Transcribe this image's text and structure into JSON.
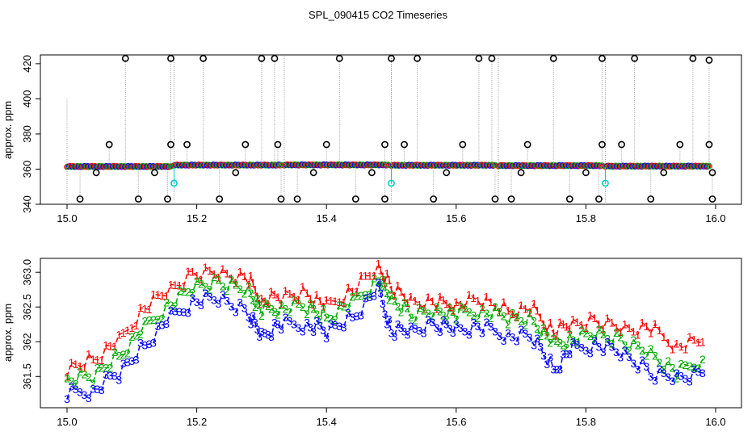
{
  "figure_title": "SPL_090415  CO2 Timeseries",
  "chart_data": [
    {
      "type": "scatter",
      "title": "SPL_090415  CO2 Timeseries",
      "xlabel": "",
      "ylabel": "approx. ppm",
      "xlim": [
        15.0,
        16.0
      ],
      "ylim": [
        340,
        425
      ],
      "x_ticks": [
        15.0,
        15.2,
        15.4,
        15.6,
        15.8,
        16.0
      ],
      "x_tick_labels": [
        "15.0",
        "15.2",
        "15.4",
        "15.6",
        "15.8",
        "16.0"
      ],
      "y_ticks": [
        340,
        360,
        380,
        400,
        420
      ],
      "y_tick_labels": [
        "340",
        "360",
        "380",
        "400",
        "420"
      ],
      "colors": {
        "series1": "#ff0000",
        "series2": "#00aa00",
        "series3": "#0000ff",
        "cal": "#00cccc",
        "drop": "#999999",
        "spike": "#000000"
      },
      "baseline_segments": [
        {
          "x_start": 15.0,
          "x_end": 15.16,
          "value": 361.5
        },
        {
          "x_start": 15.165,
          "x_end": 15.33,
          "value": 362.3
        },
        {
          "x_start": 15.335,
          "x_end": 15.495,
          "value": 362.4
        },
        {
          "x_start": 15.5,
          "x_end": 15.66,
          "value": 362.2
        },
        {
          "x_start": 15.665,
          "x_end": 15.825,
          "value": 362.0
        },
        {
          "x_start": 15.83,
          "x_end": 15.99,
          "value": 361.7
        }
      ],
      "calibration_points": [
        {
          "x": 15.165,
          "y": 352
        },
        {
          "x": 15.5,
          "y": 352
        },
        {
          "x": 15.83,
          "y": 352
        }
      ],
      "outliers_high": [
        {
          "x": 15.09,
          "y": 423
        },
        {
          "x": 15.16,
          "y": 423
        },
        {
          "x": 15.21,
          "y": 423
        },
        {
          "x": 15.3,
          "y": 423
        },
        {
          "x": 15.32,
          "y": 423
        },
        {
          "x": 15.42,
          "y": 423
        },
        {
          "x": 15.5,
          "y": 423
        },
        {
          "x": 15.54,
          "y": 423
        },
        {
          "x": 15.635,
          "y": 423
        },
        {
          "x": 15.655,
          "y": 423
        },
        {
          "x": 15.75,
          "y": 423
        },
        {
          "x": 15.825,
          "y": 423
        },
        {
          "x": 15.875,
          "y": 423
        },
        {
          "x": 15.965,
          "y": 423
        },
        {
          "x": 15.99,
          "y": 422
        }
      ],
      "outliers_mid": [
        {
          "x": 15.065,
          "y": 374
        },
        {
          "x": 15.16,
          "y": 374
        },
        {
          "x": 15.185,
          "y": 374
        },
        {
          "x": 15.275,
          "y": 374
        },
        {
          "x": 15.325,
          "y": 374
        },
        {
          "x": 15.4,
          "y": 374
        },
        {
          "x": 15.49,
          "y": 374
        },
        {
          "x": 15.52,
          "y": 374
        },
        {
          "x": 15.61,
          "y": 374
        },
        {
          "x": 15.71,
          "y": 374
        },
        {
          "x": 15.825,
          "y": 374
        },
        {
          "x": 15.855,
          "y": 374
        },
        {
          "x": 15.945,
          "y": 374
        },
        {
          "x": 15.99,
          "y": 374
        }
      ],
      "outliers_low": [
        {
          "x": 15.02,
          "y": 343
        },
        {
          "x": 15.11,
          "y": 343
        },
        {
          "x": 15.155,
          "y": 343
        },
        {
          "x": 15.235,
          "y": 343
        },
        {
          "x": 15.33,
          "y": 343
        },
        {
          "x": 15.355,
          "y": 343
        },
        {
          "x": 15.445,
          "y": 343
        },
        {
          "x": 15.49,
          "y": 343
        },
        {
          "x": 15.565,
          "y": 343
        },
        {
          "x": 15.66,
          "y": 343
        },
        {
          "x": 15.685,
          "y": 343
        },
        {
          "x": 15.775,
          "y": 343
        },
        {
          "x": 15.82,
          "y": 343
        },
        {
          "x": 15.9,
          "y": 343
        },
        {
          "x": 15.995,
          "y": 343
        }
      ],
      "outliers_near": [
        {
          "x": 15.045,
          "y": 358
        },
        {
          "x": 15.135,
          "y": 358
        },
        {
          "x": 15.26,
          "y": 358
        },
        {
          "x": 15.38,
          "y": 358
        },
        {
          "x": 15.47,
          "y": 358
        },
        {
          "x": 15.585,
          "y": 358
        },
        {
          "x": 15.7,
          "y": 358
        },
        {
          "x": 15.8,
          "y": 358
        },
        {
          "x": 15.92,
          "y": 358
        },
        {
          "x": 15.995,
          "y": 358
        }
      ]
    },
    {
      "type": "line",
      "xlabel": "",
      "ylabel": "approx. ppm",
      "xlim": [
        15.0,
        16.0
      ],
      "ylim": [
        361.05,
        363.2
      ],
      "x_ticks": [
        15.0,
        15.2,
        15.4,
        15.6,
        15.8,
        16.0
      ],
      "x_tick_labels": [
        "15.0",
        "15.2",
        "15.4",
        "15.6",
        "15.8",
        "16.0"
      ],
      "y_ticks": [
        361.5,
        362.0,
        362.5,
        363.0
      ],
      "y_tick_labels": [
        "361.5",
        "362",
        "362.5",
        "363.0"
      ],
      "series": [
        {
          "name": "1",
          "marker": "1",
          "color": "#ff0000",
          "x": [
            15.0,
            15.04,
            15.08,
            15.12,
            15.16,
            15.2,
            15.24,
            15.28,
            15.3,
            15.33,
            15.37,
            15.4,
            15.44,
            15.48,
            15.5,
            15.53,
            15.57,
            15.6,
            15.64,
            15.68,
            15.72,
            15.75,
            15.78,
            15.82,
            15.86,
            15.9,
            15.94,
            15.98
          ],
          "values": [
            361.6,
            361.75,
            362.0,
            362.5,
            362.75,
            363.0,
            363.0,
            362.9,
            362.6,
            362.65,
            362.7,
            362.5,
            362.75,
            363.05,
            362.8,
            362.6,
            362.55,
            362.55,
            362.6,
            362.45,
            362.45,
            362.15,
            362.25,
            362.3,
            362.2,
            362.2,
            361.95,
            362.0
          ]
        },
        {
          "name": "2",
          "marker": "2",
          "color": "#00aa00",
          "x": [
            15.0,
            15.04,
            15.08,
            15.12,
            15.16,
            15.2,
            15.24,
            15.28,
            15.3,
            15.33,
            15.37,
            15.4,
            15.44,
            15.48,
            15.5,
            15.53,
            15.57,
            15.6,
            15.64,
            15.68,
            15.72,
            15.75,
            15.78,
            15.82,
            15.86,
            15.9,
            15.94,
            15.98
          ],
          "values": [
            361.45,
            361.5,
            361.8,
            362.2,
            362.55,
            362.8,
            362.85,
            362.75,
            362.45,
            362.5,
            362.5,
            362.35,
            362.55,
            362.9,
            362.6,
            362.4,
            362.45,
            362.4,
            362.45,
            362.35,
            362.3,
            361.95,
            362.05,
            362.1,
            362.0,
            361.85,
            361.55,
            361.75
          ]
        },
        {
          "name": "3",
          "marker": "3",
          "color": "#0000ff",
          "x": [
            15.0,
            15.04,
            15.08,
            15.12,
            15.16,
            15.2,
            15.24,
            15.28,
            15.3,
            15.33,
            15.37,
            15.4,
            15.44,
            15.48,
            15.5,
            15.53,
            15.57,
            15.6,
            15.64,
            15.68,
            15.72,
            15.75,
            15.78,
            15.82,
            15.86,
            15.9,
            15.94,
            15.98
          ],
          "values": [
            361.25,
            361.3,
            361.55,
            361.95,
            362.35,
            362.6,
            362.6,
            362.4,
            362.1,
            362.25,
            362.25,
            362.15,
            362.35,
            362.75,
            362.15,
            362.15,
            362.25,
            362.2,
            362.2,
            362.1,
            362.05,
            361.6,
            361.9,
            361.95,
            361.8,
            361.55,
            361.5,
            361.55
          ]
        }
      ]
    }
  ]
}
